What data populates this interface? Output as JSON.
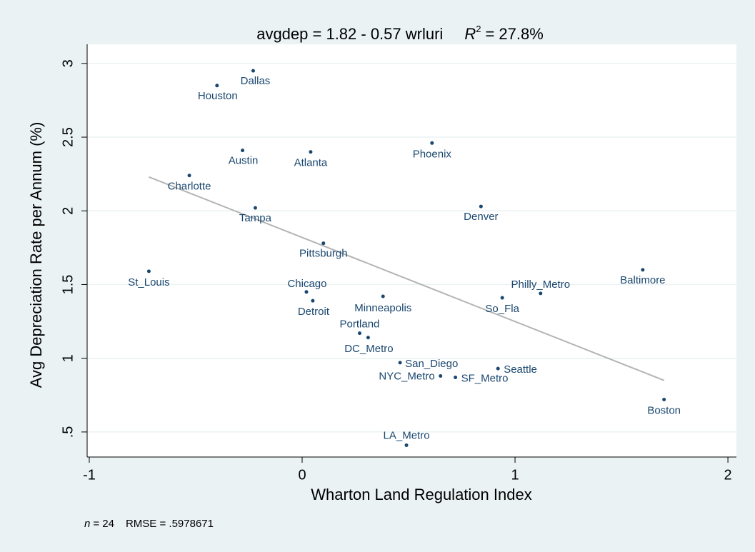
{
  "chart_data": {
    "type": "scatter",
    "title": "avgdep = 1.82 - 0.57 wrluri",
    "r2_text": {
      "symbol": "R",
      "superscript": "2",
      "value": "= 27.8%"
    },
    "x_label": "Wharton Land Regulation Index",
    "y_label": "Avg Depreciation Rate per Annum (%)",
    "note": {
      "n_symbol": "n",
      "n_value": "= 24",
      "rmse": "RMSE = .5978671"
    },
    "xlim": [
      -1.01,
      2.04
    ],
    "ylim": [
      0.33,
      3.13
    ],
    "xticks": [
      -1,
      0,
      1,
      2
    ],
    "yticks": [
      {
        "value": 0.5,
        "label": ".5"
      },
      1,
      1.5,
      2,
      2.5,
      3
    ],
    "grid": true,
    "series": [
      {
        "color": "#1a476f",
        "labels": [
          "Dallas",
          "Houston",
          "Austin",
          "Atlanta",
          "Phoenix",
          "Charlotte",
          "Tampa",
          "Denver",
          "Pittsburgh",
          "St_Louis",
          "Baltimore",
          "Chicago",
          "Detroit",
          "Minneapolis",
          "Philly_Metro",
          "So_Fla",
          "Portland",
          "DC_Metro",
          "San_Diego",
          "NYC_Metro",
          "SF_Metro",
          "Seattle",
          "Boston",
          "LA_Metro"
        ],
        "x": [
          -0.23,
          -0.4,
          -0.28,
          0.04,
          0.61,
          -0.53,
          -0.22,
          0.84,
          0.1,
          -0.72,
          1.6,
          0.02,
          0.05,
          0.38,
          1.12,
          0.94,
          0.27,
          0.31,
          0.46,
          0.65,
          0.72,
          0.92,
          1.7,
          0.49
        ],
        "values": [
          2.95,
          2.85,
          2.41,
          2.4,
          2.46,
          2.24,
          2.02,
          2.03,
          1.78,
          1.59,
          1.6,
          1.45,
          1.39,
          1.42,
          1.44,
          1.41,
          1.17,
          1.14,
          0.97,
          0.88,
          0.87,
          0.93,
          0.72,
          0.41
        ]
      }
    ],
    "fit_line": {
      "color": "#b4b4b4",
      "x": [
        -0.72,
        1.7
      ],
      "values": [
        2.23,
        0.85
      ]
    }
  }
}
